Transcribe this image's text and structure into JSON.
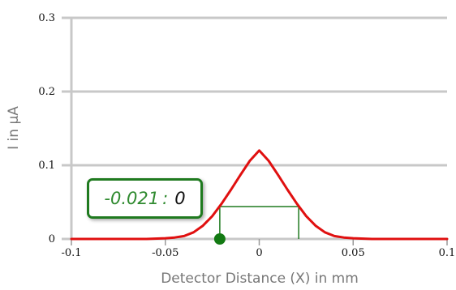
{
  "chart_data": {
    "type": "line",
    "title": "",
    "xlabel": "Detector Distance (X) in mm",
    "ylabel": "I in µA",
    "xlim": [
      -0.1,
      0.1
    ],
    "ylim": [
      0,
      0.3
    ],
    "x_ticks": [
      "-0.1",
      "-0.05",
      "0",
      "0.05",
      "0.1"
    ],
    "y_ticks": [
      "0",
      "0.1",
      "0.2",
      "0.3"
    ],
    "grid": "horizontal",
    "series": [
      {
        "color": "#e01010",
        "x": [
          -0.1,
          -0.06,
          -0.05,
          -0.045,
          -0.04,
          -0.035,
          -0.03,
          -0.025,
          -0.02,
          -0.015,
          -0.01,
          -0.005,
          0,
          0.005,
          0.01,
          0.015,
          0.02,
          0.025,
          0.03,
          0.035,
          0.04,
          0.045,
          0.05,
          0.06,
          0.1
        ],
        "y": [
          0,
          0,
          0.001,
          0.002,
          0.004,
          0.009,
          0.018,
          0.031,
          0.048,
          0.067,
          0.087,
          0.106,
          0.12,
          0.106,
          0.087,
          0.067,
          0.048,
          0.031,
          0.018,
          0.009,
          0.004,
          0.002,
          0.001,
          0,
          0
        ]
      }
    ],
    "marker": {
      "x": -0.021,
      "y": 0,
      "color": "#137a13"
    },
    "fwhm_bracket": {
      "x1": -0.021,
      "x2": 0.021,
      "y": 0.044,
      "color": "#1f7a1f"
    }
  },
  "readout": {
    "x_value": "-0.021",
    "separator": ":",
    "y_value": "0"
  },
  "colors": {
    "grid": "#c8c8c8",
    "curve": "#e01010",
    "marker": "#137a13",
    "bracket": "#1f7a1f",
    "readout_border": "#1f7a1f"
  }
}
